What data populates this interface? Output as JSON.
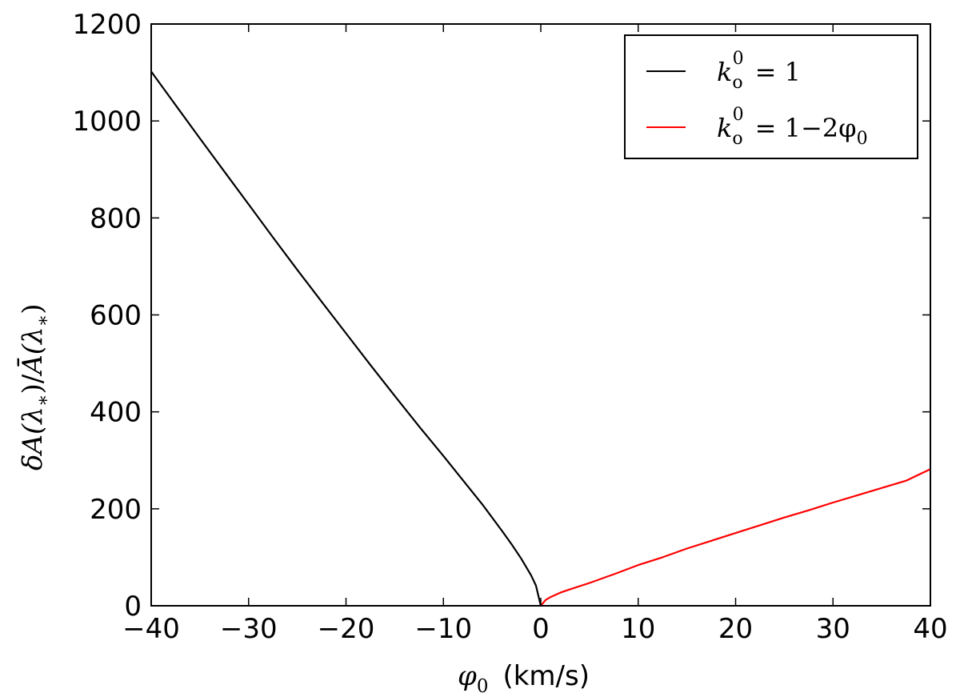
{
  "chart_data": {
    "type": "line",
    "title": "",
    "xlabel": {
      "symbol": "φ",
      "sub": "0",
      "unit": "(km/s)"
    },
    "ylabel": {
      "num": "δA(λ",
      "num_sub": "∗",
      "num_close": ")",
      "slash": "/",
      "den": "Ā(λ",
      "den_sub": "∗",
      "den_close": ")"
    },
    "xlim": [
      -40,
      40
    ],
    "ylim": [
      0,
      1200
    ],
    "xticks": [
      -40,
      -30,
      -20,
      -10,
      0,
      10,
      20,
      30,
      40
    ],
    "xtick_labels": [
      "−40",
      "−30",
      "−20",
      "−10",
      "0",
      "10",
      "20",
      "30",
      "40"
    ],
    "yticks": [
      0,
      200,
      400,
      600,
      800,
      1000,
      1200
    ],
    "ytick_labels": [
      "0",
      "200",
      "400",
      "600",
      "800",
      "1000",
      "1200"
    ],
    "grid": false,
    "legend_position": "top-right",
    "series": [
      {
        "name": "k_o^0 = 1",
        "color": "#000000",
        "legend": {
          "k": "k",
          "sub": "o",
          "sup": "0",
          "rhs": "= 1"
        },
        "x": [
          -40,
          -37.5,
          -35,
          -32.5,
          -30,
          -27.5,
          -25,
          -22.5,
          -20,
          -17.5,
          -15,
          -12.5,
          -10,
          -8,
          -6,
          -4,
          -3,
          -2,
          -1,
          -0.5,
          0
        ],
        "y": [
          1102,
          1033,
          964,
          896,
          828,
          760,
          693,
          627,
          562,
          497,
          433,
          370,
          309,
          259,
          209,
          155,
          127,
          97,
          63,
          42,
          0
        ]
      },
      {
        "name": "k_o^0 = 1−2φ_0",
        "color": "#ff0000",
        "legend": {
          "k": "k",
          "sub": "o",
          "sup": "0",
          "rhs": "= 1−2φ",
          "rhs_sub": "0"
        },
        "x": [
          0,
          0.5,
          1,
          2,
          3,
          5,
          7.5,
          10,
          12.5,
          15,
          17.5,
          20,
          22.5,
          25,
          27.5,
          30,
          32.5,
          35,
          37.5,
          40
        ],
        "y": [
          0,
          12,
          18,
          27,
          34,
          47,
          65,
          84,
          100,
          118,
          134,
          150,
          166,
          182,
          197,
          213,
          228,
          243,
          258,
          282
        ]
      }
    ]
  }
}
